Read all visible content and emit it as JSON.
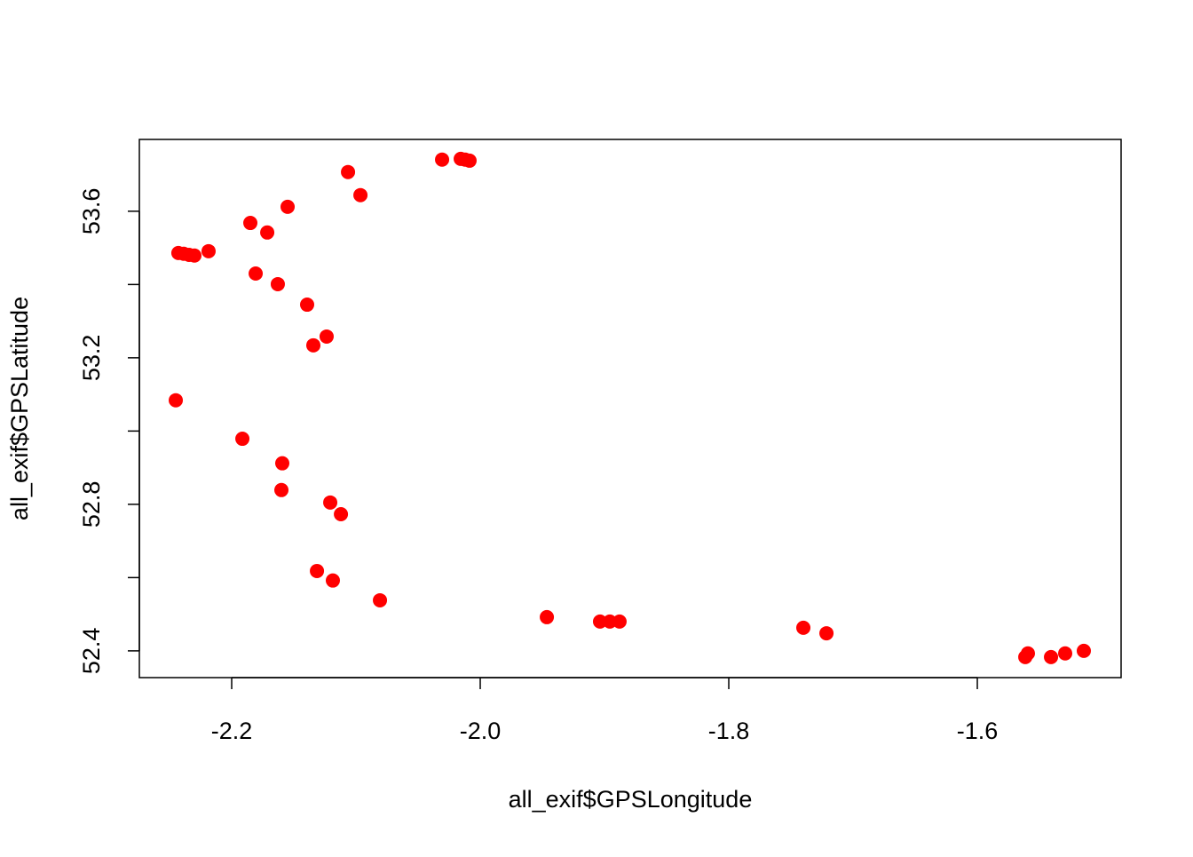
{
  "chart_data": {
    "type": "scatter",
    "xlabel": "all_exif$GPSLongitude",
    "ylabel": "all_exif$GPSLatitude",
    "color": "#ff0000",
    "grid": false,
    "xlim": [
      -2.2743,
      -1.4843
    ],
    "ylim": [
      52.327,
      53.796
    ],
    "xticks": [
      -2.2,
      {
        "value": -2,
        "label": "-2.0"
      },
      -1.8,
      -1.6
    ],
    "yticks": [
      52.4,
      {
        "value": 52.6,
        "label": null
      },
      52.8,
      {
        "value": 53,
        "label": null
      },
      53.2,
      {
        "value": 53.4,
        "label": null
      },
      53.6
    ],
    "x": [
      -2.245,
      -2.1914,
      -2.1593,
      -2.16,
      -2.1207,
      -2.1121,
      -2.1314,
      -2.1186,
      -2.0807,
      -1.9464,
      -1.9036,
      -1.8957,
      -1.8879,
      -1.74,
      -1.7214,
      -1.5614,
      -1.5593,
      -1.5407,
      -1.5293,
      -1.5143,
      -2.2429,
      -2.2386,
      -2.2343,
      -2.23,
      -2.2186,
      -2.185,
      -2.1714,
      -2.155,
      -2.1807,
      -2.1629,
      -2.1393,
      -2.1236,
      -2.1343,
      -2.1064,
      -2.0964,
      -2.0307,
      -2.0157,
      -2.0121,
      -2.0086
    ],
    "y": [
      53.084,
      52.979,
      52.912,
      52.839,
      52.805,
      52.773,
      52.618,
      52.592,
      52.538,
      52.492,
      52.48,
      52.48,
      52.48,
      52.463,
      52.448,
      52.383,
      52.393,
      52.383,
      52.393,
      52.4,
      53.486,
      53.484,
      53.481,
      53.479,
      53.491,
      53.568,
      53.542,
      53.612,
      53.43,
      53.401,
      53.345,
      53.258,
      53.234,
      53.707,
      53.644,
      53.741,
      53.743,
      53.741,
      53.738
    ]
  }
}
